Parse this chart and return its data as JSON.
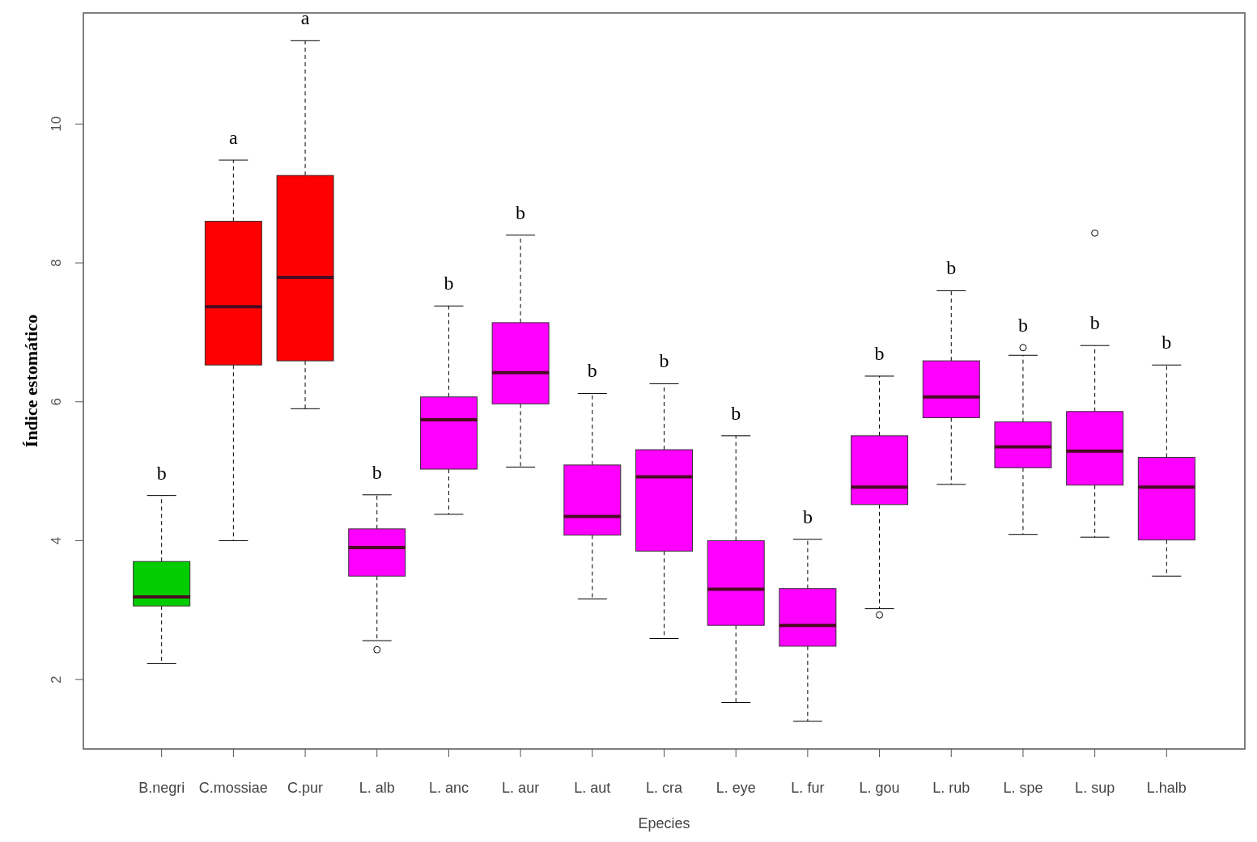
{
  "chart_data": {
    "type": "box",
    "xlabel": "Epecies",
    "ylabel": "Índice estomático",
    "categories": [
      "B.negri",
      "C.mossiae",
      "C.pur",
      "L. alb",
      "L. anc",
      "L. aur",
      "L. aut",
      "L. cra",
      "L. eye",
      "L. fur",
      "L. gou",
      "L. rub",
      "L. spe",
      "L. sup",
      "L.halb"
    ],
    "colors": [
      "#00cc00",
      "#ff0000",
      "#ff0000",
      "#ff00ff",
      "#ff00ff",
      "#ff00ff",
      "#ff00ff",
      "#ff00ff",
      "#ff00ff",
      "#ff00ff",
      "#ff00ff",
      "#ff00ff",
      "#ff00ff",
      "#ff00ff",
      "#ff00ff"
    ],
    "boxes": [
      {
        "low": 2.23,
        "q1": 3.06,
        "median": 3.19,
        "q3": 3.7,
        "high": 4.65
      },
      {
        "low": 4.0,
        "q1": 6.53,
        "median": 7.37,
        "q3": 8.6,
        "high": 9.48
      },
      {
        "low": 5.9,
        "q1": 6.59,
        "median": 7.79,
        "q3": 9.26,
        "high": 11.2
      },
      {
        "low": 2.56,
        "q1": 3.49,
        "median": 3.9,
        "q3": 4.17,
        "high": 4.66,
        "outliers": [
          2.43
        ]
      },
      {
        "low": 4.38,
        "q1": 5.03,
        "median": 5.74,
        "q3": 6.07,
        "high": 7.38
      },
      {
        "low": 5.06,
        "q1": 5.97,
        "median": 6.42,
        "q3": 7.14,
        "high": 8.4
      },
      {
        "low": 3.16,
        "q1": 4.08,
        "median": 4.35,
        "q3": 5.09,
        "high": 6.12
      },
      {
        "low": 2.59,
        "q1": 3.85,
        "median": 4.92,
        "q3": 5.31,
        "high": 6.26
      },
      {
        "low": 1.67,
        "q1": 2.78,
        "median": 3.3,
        "q3": 4.0,
        "high": 5.51
      },
      {
        "low": 1.4,
        "q1": 2.48,
        "median": 2.78,
        "q3": 3.31,
        "high": 4.02
      },
      {
        "low": 3.02,
        "q1": 4.52,
        "median": 4.77,
        "q3": 5.51,
        "high": 6.37,
        "outliers": [
          2.93
        ]
      },
      {
        "low": 4.81,
        "q1": 5.77,
        "median": 6.07,
        "q3": 6.59,
        "high": 7.6
      },
      {
        "low": 4.09,
        "q1": 5.05,
        "median": 5.35,
        "q3": 5.71,
        "high": 6.67,
        "outliers": [
          6.78
        ]
      },
      {
        "low": 4.05,
        "q1": 4.8,
        "median": 5.29,
        "q3": 5.86,
        "high": 6.81,
        "outliers": [
          8.43
        ]
      },
      {
        "low": 3.49,
        "q1": 4.01,
        "median": 4.77,
        "q3": 5.2,
        "high": 6.53
      }
    ],
    "ylim": [
      1.0,
      11.6
    ],
    "yticks": [
      2,
      4,
      6,
      8,
      10
    ],
    "annotations": [
      "b",
      "a",
      "a",
      "b",
      "b",
      "b",
      "b",
      "b",
      "b",
      "b",
      "b",
      "b",
      "b",
      "b",
      "b"
    ]
  }
}
